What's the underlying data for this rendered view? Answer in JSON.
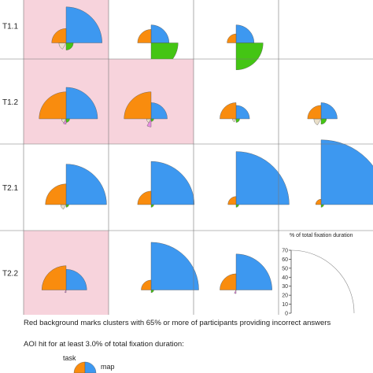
{
  "chart_data": {
    "type": "polar-glyph-grid",
    "rows": [
      "T1.1",
      "T1.2",
      "T2.1",
      "T2.2"
    ],
    "aoi_colors": {
      "map": "#3d98f0",
      "task": "#f98c0e",
      "aoi_green": "#44c514",
      "aoi_pink": "#e98ee3",
      "aoi_beige": "#e9dfc9"
    },
    "incorrect_color": "#f7d3dc",
    "scale": {
      "title": "% of total fixation duration",
      "ticks": [
        0,
        10,
        20,
        30,
        40,
        50,
        60,
        70
      ],
      "max": 70
    },
    "cells": [
      [
        {
          "incorrect": true,
          "map": 40,
          "task": 16,
          "aoi_green": 8,
          "aoi_pink": 0,
          "aoi_beige": 8
        },
        {
          "incorrect": false,
          "map": 20,
          "task": 15,
          "aoi_green": 30,
          "aoi_pink": 0,
          "aoi_beige": 0
        },
        {
          "incorrect": false,
          "map": 20,
          "task": 10,
          "aoi_green": 30,
          "aoi_pink": 0,
          "aoi_beige": 0
        },
        null
      ],
      [
        {
          "incorrect": true,
          "map": 35,
          "task": 30,
          "aoi_green": 4,
          "aoi_pink": 6,
          "aoi_beige": 5
        },
        {
          "incorrect": true,
          "map": 18,
          "task": 30,
          "aoi_green": 3,
          "aoi_pink": 9,
          "aoi_beige": 5
        },
        {
          "incorrect": false,
          "map": 15,
          "task": 18,
          "aoi_green": 4,
          "aoi_pink": 0,
          "aoi_beige": 4
        },
        {
          "incorrect": false,
          "map": 18,
          "task": 15,
          "aoi_green": 6,
          "aoi_pink": 0,
          "aoi_beige": 8
        }
      ],
      [
        {
          "incorrect": false,
          "map": 45,
          "task": 23,
          "aoi_green": 3,
          "aoi_pink": 0,
          "aoi_beige": 6
        },
        {
          "incorrect": false,
          "map": 48,
          "task": 15,
          "aoi_green": 3,
          "aoi_pink": 0,
          "aoi_beige": 0
        },
        {
          "incorrect": false,
          "map": 59,
          "task": 9,
          "aoi_green": 3,
          "aoi_pink": 0,
          "aoi_beige": 0
        },
        {
          "incorrect": false,
          "map": 72,
          "task": 6,
          "aoi_green": 3,
          "aoi_pink": 0,
          "aoi_beige": 0
        }
      ],
      [
        {
          "incorrect": true,
          "map": 23,
          "task": 27,
          "aoi_green": 0,
          "aoi_pink": 3,
          "aoi_beige": 0
        },
        {
          "incorrect": false,
          "map": 53,
          "task": 11,
          "aoi_green": 3,
          "aoi_pink": 0,
          "aoi_beige": 0
        },
        {
          "incorrect": false,
          "map": 40,
          "task": 18,
          "aoi_green": 0,
          "aoi_pink": 4,
          "aoi_beige": 0
        },
        "scale"
      ]
    ],
    "caption": "Red background marks clusters with 65% or more of participants providing incorrect answers",
    "legend": {
      "title": "AOI hit for at least 3.0% of total fixation duration:",
      "task_label": "task",
      "map_label": "map"
    }
  }
}
